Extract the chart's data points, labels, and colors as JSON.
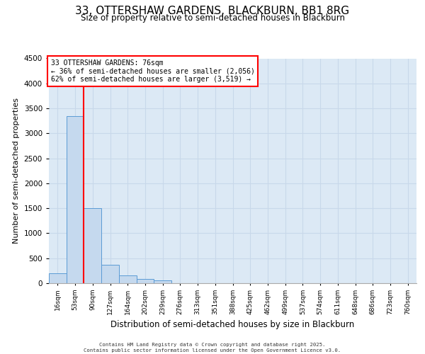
{
  "title_line1": "33, OTTERSHAW GARDENS, BLACKBURN, BB1 8RG",
  "title_line2": "Size of property relative to semi-detached houses in Blackburn",
  "xlabel": "Distribution of semi-detached houses by size in Blackburn",
  "ylabel": "Number of semi-detached properties",
  "bin_labels": [
    "16sqm",
    "53sqm",
    "90sqm",
    "127sqm",
    "164sqm",
    "202sqm",
    "239sqm",
    "276sqm",
    "313sqm",
    "351sqm",
    "388sqm",
    "425sqm",
    "462sqm",
    "499sqm",
    "537sqm",
    "574sqm",
    "611sqm",
    "648sqm",
    "686sqm",
    "723sqm",
    "760sqm"
  ],
  "bar_values": [
    200,
    3350,
    1500,
    375,
    150,
    80,
    50,
    0,
    0,
    0,
    0,
    0,
    0,
    0,
    0,
    0,
    0,
    0,
    0,
    0,
    0
  ],
  "bar_color": "#c5d9ee",
  "bar_edgecolor": "#5b9bd5",
  "red_line_x": 1.5,
  "annotation_title": "33 OTTERSHAW GARDENS: 76sqm",
  "annotation_line2": "← 36% of semi-detached houses are smaller (2,056)",
  "annotation_line3": "62% of semi-detached houses are larger (3,519) →",
  "ylim": [
    0,
    4500
  ],
  "yticks": [
    0,
    500,
    1000,
    1500,
    2000,
    2500,
    3000,
    3500,
    4000,
    4500
  ],
  "grid_color": "#c8d8ea",
  "axes_background": "#dce9f5",
  "footer_line1": "Contains HM Land Registry data © Crown copyright and database right 2025.",
  "footer_line2": "Contains public sector information licensed under the Open Government Licence v3.0."
}
